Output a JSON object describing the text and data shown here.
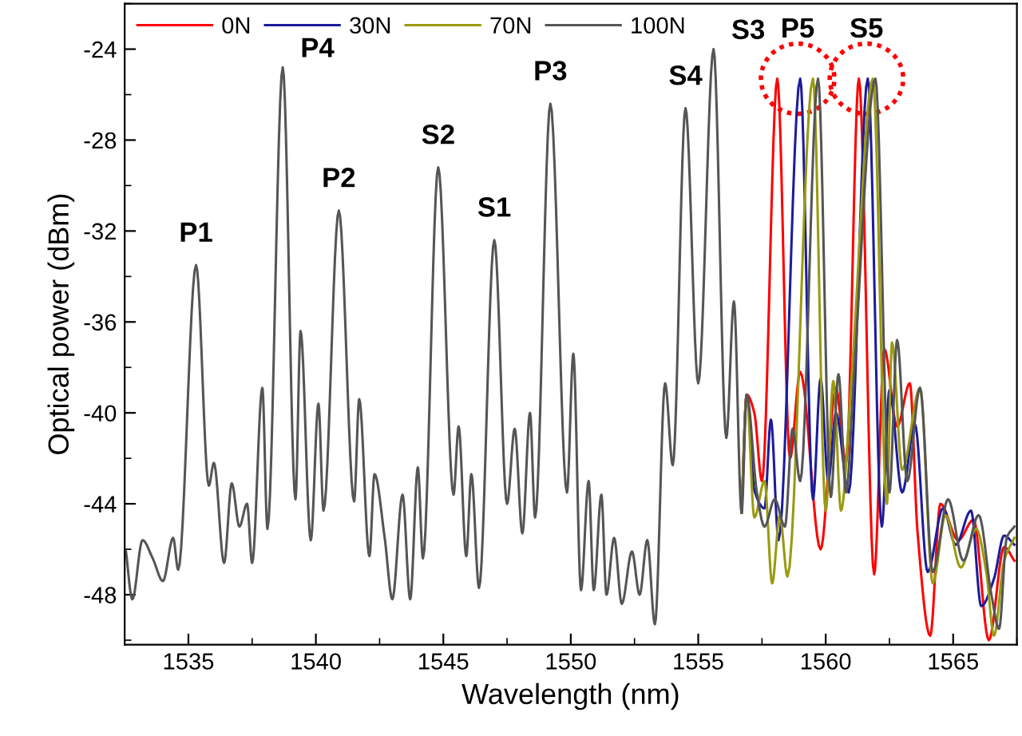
{
  "chart_data": {
    "type": "line",
    "xlabel": "Wavelength (nm)",
    "ylabel": "Optical power (dBm)",
    "xlim": [
      1532.5,
      1567.5
    ],
    "ylim": [
      -50.2,
      -22
    ],
    "xticks": [
      1535,
      1540,
      1545,
      1550,
      1555,
      1560,
      1565
    ],
    "yticks": [
      -48,
      -44,
      -40,
      -36,
      -32,
      -28,
      -24
    ],
    "grid": false,
    "legend": "top left",
    "marker": "none",
    "line_style": "solid",
    "series": [
      {
        "name": "0N",
        "color": "#ff0000",
        "x": [
          1556.7,
          1556.9,
          1557.2,
          1557.5,
          1558.1,
          1558.6,
          1559.0,
          1559.8,
          1560.4,
          1560.8,
          1561.3,
          1561.9,
          1562.3,
          1562.8,
          1563.3,
          1563.6,
          1564.1,
          1564.5,
          1565.2,
          1565.8,
          1566.4,
          1567.0,
          1567.4
        ],
        "values": [
          -44.4,
          -39.2,
          -40.0,
          -43.0,
          -25.3,
          -42.0,
          -38.2,
          -46.0,
          -38.9,
          -42.2,
          -25.3,
          -47.1,
          -37.2,
          -40.6,
          -38.7,
          -45.2,
          -49.8,
          -44.0,
          -45.6,
          -44.7,
          -50.0,
          -45.9,
          -46.5
        ]
      },
      {
        "name": "30N",
        "color": "#1c1c9c",
        "x": [
          1556.7,
          1556.9,
          1557.2,
          1557.6,
          1557.85,
          1558.15,
          1559.0,
          1559.5,
          1559.8,
          1560.1,
          1560.4,
          1560.9,
          1561.65,
          1562.2,
          1562.5,
          1563.0,
          1563.5,
          1564.0,
          1564.6,
          1565.1,
          1565.7,
          1566.1,
          1566.6,
          1567.0,
          1567.4
        ],
        "values": [
          -44.4,
          -39.2,
          -43.4,
          -44.2,
          -40.3,
          -45.6,
          -25.3,
          -43.8,
          -38.5,
          -43.0,
          -40.0,
          -43.5,
          -25.3,
          -45.0,
          -39.0,
          -43.5,
          -40.5,
          -47.0,
          -44.2,
          -45.8,
          -44.3,
          -48.5,
          -47.3,
          -45.4,
          -45.8
        ]
      },
      {
        "name": "70N",
        "color": "#9a9a10",
        "x": [
          1556.7,
          1556.9,
          1557.2,
          1557.6,
          1557.9,
          1558.2,
          1558.5,
          1559.5,
          1560.0,
          1560.3,
          1560.6,
          1561.0,
          1561.85,
          1562.4,
          1562.6,
          1563.0,
          1563.7,
          1564.2,
          1564.7,
          1565.3,
          1565.9,
          1566.3,
          1566.6,
          1567.0,
          1567.4
        ],
        "values": [
          -44.4,
          -39.2,
          -44.6,
          -43.0,
          -47.5,
          -44.5,
          -47.2,
          -25.3,
          -44.3,
          -38.6,
          -44.3,
          -38.7,
          -25.3,
          -44.0,
          -36.9,
          -42.5,
          -38.9,
          -47.5,
          -44.5,
          -46.8,
          -45.1,
          -47.0,
          -49.8,
          -46.5,
          -45.5
        ]
      },
      {
        "name": "100N",
        "color": "#555555",
        "x": [
          1532.55,
          1532.8,
          1533.2,
          1533.6,
          1534.0,
          1534.4,
          1534.6,
          1535.3,
          1535.8,
          1536.0,
          1536.4,
          1536.7,
          1537.0,
          1537.3,
          1537.5,
          1537.9,
          1538.1,
          1538.7,
          1539.2,
          1539.4,
          1539.8,
          1540.1,
          1540.3,
          1540.9,
          1541.5,
          1541.7,
          1542.1,
          1542.3,
          1542.7,
          1543.0,
          1543.4,
          1543.7,
          1544.0,
          1544.2,
          1544.8,
          1545.4,
          1545.6,
          1545.9,
          1546.1,
          1546.4,
          1547.0,
          1547.5,
          1547.8,
          1548.1,
          1548.4,
          1548.6,
          1549.2,
          1549.85,
          1550.1,
          1550.4,
          1550.7,
          1550.9,
          1551.2,
          1551.4,
          1551.7,
          1552.0,
          1552.4,
          1552.7,
          1553.0,
          1553.3,
          1553.7,
          1554.0,
          1554.5,
          1555.0,
          1555.6,
          1556.1,
          1556.4,
          1556.7,
          1556.9,
          1557.3,
          1557.6,
          1558.0,
          1558.4,
          1558.7,
          1559.0,
          1559.7,
          1560.2,
          1560.5,
          1560.8,
          1561.1,
          1561.95,
          1562.5,
          1562.8,
          1563.2,
          1563.7,
          1564.2,
          1564.8,
          1565.4,
          1566.0,
          1566.5,
          1566.8,
          1567.1,
          1567.4
        ],
        "values": [
          -46.1,
          -48.2,
          -45.6,
          -46.4,
          -47.4,
          -45.5,
          -46.9,
          -33.5,
          -43.2,
          -42.2,
          -46.6,
          -43.1,
          -45.0,
          -44.0,
          -46.6,
          -38.9,
          -45.1,
          -24.8,
          -43.8,
          -36.4,
          -45.6,
          -39.6,
          -44.3,
          -31.1,
          -43.9,
          -39.4,
          -46.3,
          -42.7,
          -45.5,
          -48.2,
          -43.6,
          -48.2,
          -42.4,
          -46.4,
          -29.2,
          -43.6,
          -40.6,
          -46.3,
          -42.7,
          -47.7,
          -32.4,
          -44.0,
          -40.7,
          -45.3,
          -40.0,
          -44.6,
          -26.4,
          -43.5,
          -37.4,
          -47.8,
          -43.0,
          -47.8,
          -43.6,
          -48.0,
          -45.5,
          -48.4,
          -46.1,
          -48.0,
          -45.6,
          -49.3,
          -38.7,
          -42.3,
          -26.6,
          -38.7,
          -24.0,
          -41.1,
          -35.1,
          -44.4,
          -39.2,
          -43.5,
          -45.0,
          -43.8,
          -45.0,
          -40.7,
          -43.0,
          -25.3,
          -43.7,
          -38.3,
          -43.5,
          -38.5,
          -25.3,
          -43.5,
          -36.8,
          -43.0,
          -38.9,
          -47.0,
          -43.8,
          -46.5,
          -44.5,
          -48.0,
          -49.5,
          -45.5,
          -45.0
        ]
      }
    ],
    "annotations": [
      {
        "text": "P1",
        "x": 1535.3,
        "y": -33.5
      },
      {
        "text": "P4",
        "x": 1538.7,
        "y": -24.8
      },
      {
        "text": "P2",
        "x": 1540.9,
        "y": -31.1
      },
      {
        "text": "S2",
        "x": 1544.8,
        "y": -29.2
      },
      {
        "text": "S1",
        "x": 1547.0,
        "y": -32.4
      },
      {
        "text": "P3",
        "x": 1549.2,
        "y": -26.4
      },
      {
        "text": "S4",
        "x": 1554.5,
        "y": -26.6
      },
      {
        "text": "S3",
        "x": 1555.6,
        "y": -24.0
      },
      {
        "text": "P5",
        "x": 1558.9,
        "y": -25.3
      },
      {
        "text": "S5",
        "x": 1561.6,
        "y": -25.3
      }
    ]
  }
}
